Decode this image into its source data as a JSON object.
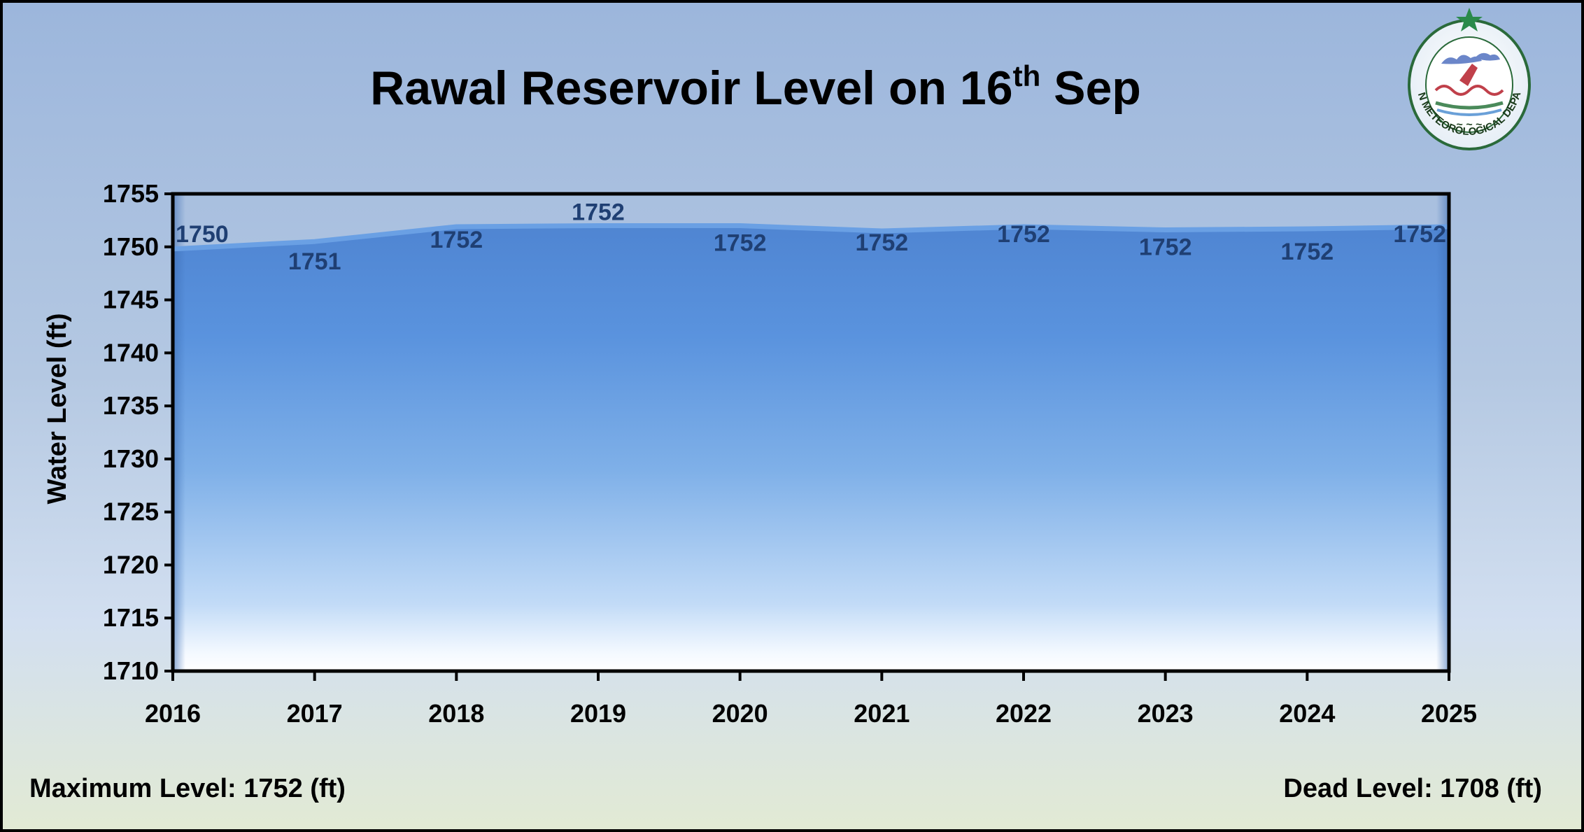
{
  "chart_data": {
    "type": "area",
    "title": "Rawal Reservoir Level on 16",
    "title_superscript": "th",
    "title_suffix": " Sep",
    "ylabel": "Water Level (ft)",
    "xlabel": "",
    "ylim": [
      1710,
      1755
    ],
    "y_ticks": [
      1710,
      1715,
      1720,
      1725,
      1730,
      1735,
      1740,
      1745,
      1750,
      1755
    ],
    "categories": [
      "2016",
      "2017",
      "2018",
      "2019",
      "2020",
      "2021",
      "2022",
      "2023",
      "2024",
      "2025"
    ],
    "values": [
      1749.8,
      1750.5,
      1751.9,
      1752.0,
      1752.0,
      1751.5,
      1751.9,
      1751.6,
      1751.7,
      1751.9
    ],
    "data_labels": [
      "1750",
      "1751",
      "1752",
      "1752",
      "1752",
      "1752",
      "1752",
      "1752",
      "1752",
      "1752"
    ],
    "grid": false,
    "legend": "none",
    "colors": {
      "area_top": "#5a91d9",
      "area_bottom": "#ffffff",
      "line": "#6aa0e4",
      "data_label": "#1f3f73"
    }
  },
  "footer": {
    "max_level": "Maximum Level: 1752 (ft)",
    "dead_level": "Dead Level: 1708 (ft)"
  },
  "logo": {
    "name": "pmd-logo-icon",
    "text": "PAKISTAN METEOROLOGICAL DEPARTMENT",
    "star_color": "#2a8a4a"
  }
}
